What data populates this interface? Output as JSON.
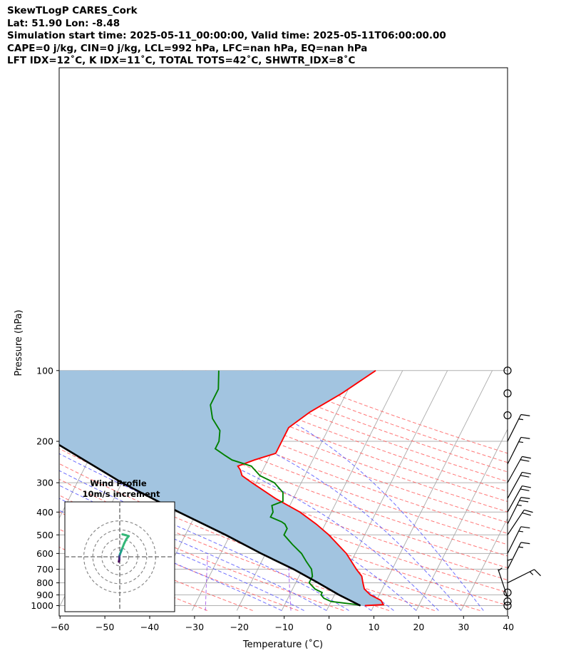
{
  "header": {
    "line1": "SkewTLogP CARES_Cork",
    "line2": "Lat: 51.90   Lon: -8.48",
    "line3": "Simulation start time: 2025-05-11_00:00:00, Valid time: 2025-05-11T06:00:00.00",
    "line4": "CAPE=0 j/kg, CIN=0 j/kg, LCL=992 hPa, LFC=nan hPa, EQ=nan hPa",
    "line5": "LFT IDX=12˚C, K IDX=11˚C, TOTAL TOTS=42˚C, SHWTR_IDX=8˚C"
  },
  "hodograph": {
    "title": "Wind Profile",
    "subtitle": "10m/s increment"
  },
  "chart_data": {
    "type": "line",
    "xlabel": "Temperature (˚C)",
    "ylabel": "Pressure (hPa)",
    "xlim": [
      -60,
      40
    ],
    "ylim": [
      1050,
      100
    ],
    "y_scale": "log",
    "x_ticks": [
      "−60",
      "−50",
      "−40",
      "−30",
      "−20",
      "−10",
      "0",
      "10",
      "20",
      "30",
      "40"
    ],
    "y_ticks": [
      "100",
      "200",
      "300",
      "400",
      "500",
      "600",
      "700",
      "800",
      "900",
      "1000"
    ],
    "series": [
      {
        "color": "#ff0000",
        "points": [
          [
            1000,
            8
          ],
          [
            990,
            12
          ],
          [
            950,
            11
          ],
          [
            900,
            8
          ],
          [
            850,
            6
          ],
          [
            800,
            5
          ],
          [
            750,
            4
          ],
          [
            700,
            2
          ],
          [
            600,
            -2
          ],
          [
            500,
            -8
          ],
          [
            450,
            -12
          ],
          [
            400,
            -17
          ],
          [
            350,
            -24
          ],
          [
            300,
            -31
          ],
          [
            280,
            -34
          ],
          [
            265,
            -35
          ],
          [
            255,
            -36
          ],
          [
            240,
            -33
          ],
          [
            225,
            -29
          ],
          [
            200,
            -29
          ],
          [
            175,
            -29
          ],
          [
            150,
            -26
          ],
          [
            125,
            -21
          ],
          [
            100,
            -16
          ]
        ]
      },
      {
        "color": "#008000",
        "points": [
          [
            1000,
            7
          ],
          [
            990,
            6
          ],
          [
            960,
            0
          ],
          [
            930,
            -2
          ],
          [
            900,
            -3
          ],
          [
            880,
            -3
          ],
          [
            850,
            -5
          ],
          [
            800,
            -7
          ],
          [
            750,
            -7
          ],
          [
            700,
            -8
          ],
          [
            650,
            -10
          ],
          [
            600,
            -12
          ],
          [
            550,
            -15
          ],
          [
            500,
            -18
          ],
          [
            470,
            -18
          ],
          [
            450,
            -19
          ],
          [
            440,
            -20
          ],
          [
            420,
            -23
          ],
          [
            400,
            -23
          ],
          [
            375,
            -24
          ],
          [
            360,
            -22
          ],
          [
            330,
            -23
          ],
          [
            300,
            -26
          ],
          [
            280,
            -30
          ],
          [
            255,
            -33
          ],
          [
            240,
            -38
          ],
          [
            230,
            -40
          ],
          [
            215,
            -43
          ],
          [
            200,
            -43
          ],
          [
            180,
            -44
          ],
          [
            160,
            -47
          ],
          [
            140,
            -49
          ],
          [
            120,
            -49
          ],
          [
            100,
            -51
          ]
        ]
      },
      {
        "color": "#000000",
        "points": [
          [
            1000,
            7
          ],
          [
            900,
            1
          ],
          [
            800,
            -5
          ],
          [
            700,
            -12
          ],
          [
            600,
            -21
          ],
          [
            500,
            -31
          ],
          [
            400,
            -44
          ],
          [
            300,
            -60
          ],
          [
            250,
            -69
          ],
          [
            200,
            -80
          ],
          [
            150,
            -95
          ],
          [
            100,
            -115
          ]
        ]
      }
    ],
    "wind_barbs": [
      {
        "pressure": 100,
        "u": 0,
        "v": 0
      },
      {
        "pressure": 125,
        "u": 0,
        "v": 0
      },
      {
        "pressure": 155,
        "u": 0,
        "v": 0
      },
      {
        "pressure": 200,
        "u": -3,
        "v": -6
      },
      {
        "pressure": 250,
        "u": -3,
        "v": -6
      },
      {
        "pressure": 300,
        "u": -5,
        "v": -9
      },
      {
        "pressure": 350,
        "u": -5,
        "v": -9
      },
      {
        "pressure": 400,
        "u": -5,
        "v": -9
      },
      {
        "pressure": 450,
        "u": -6,
        "v": -12
      },
      {
        "pressure": 500,
        "u": -6,
        "v": -9
      },
      {
        "pressure": 600,
        "u": -4,
        "v": -8
      },
      {
        "pressure": 700,
        "u": -4,
        "v": -8
      },
      {
        "pressure": 800,
        "u": -6,
        "v": -3
      },
      {
        "pressure": 850,
        "u": 0,
        "v": -2
      },
      {
        "pressure": 880,
        "u": 0,
        "v": 0
      },
      {
        "pressure": 925,
        "u": 1,
        "v": -3
      },
      {
        "pressure": 960,
        "u": 0,
        "v": 0
      },
      {
        "pressure": 1000,
        "u": 0,
        "v": 0
      }
    ],
    "hodograph": {
      "rings_ms": [
        10,
        20,
        30,
        40
      ],
      "path_ms": [
        [
          -1.0,
          -5.5
        ],
        [
          -0.5,
          -3
        ],
        [
          -0.4,
          0.5
        ],
        [
          0.3,
          3
        ],
        [
          1.5,
          6
        ],
        [
          3,
          10
        ],
        [
          5,
          15
        ],
        [
          7.5,
          20
        ],
        [
          10,
          23
        ],
        [
          7,
          24
        ],
        [
          3,
          25
        ]
      ]
    },
    "colors": {
      "temperature": "#ff0000",
      "dewpoint": "#008000",
      "parcel": "#000000",
      "cape_fill": "#a2c4e0",
      "dry_adiabat": "#ff5555",
      "moist_adiabat": "#4a4aff",
      "mixing_ratio": "#8a2be2",
      "isotherm": "#aaaaaa"
    }
  }
}
